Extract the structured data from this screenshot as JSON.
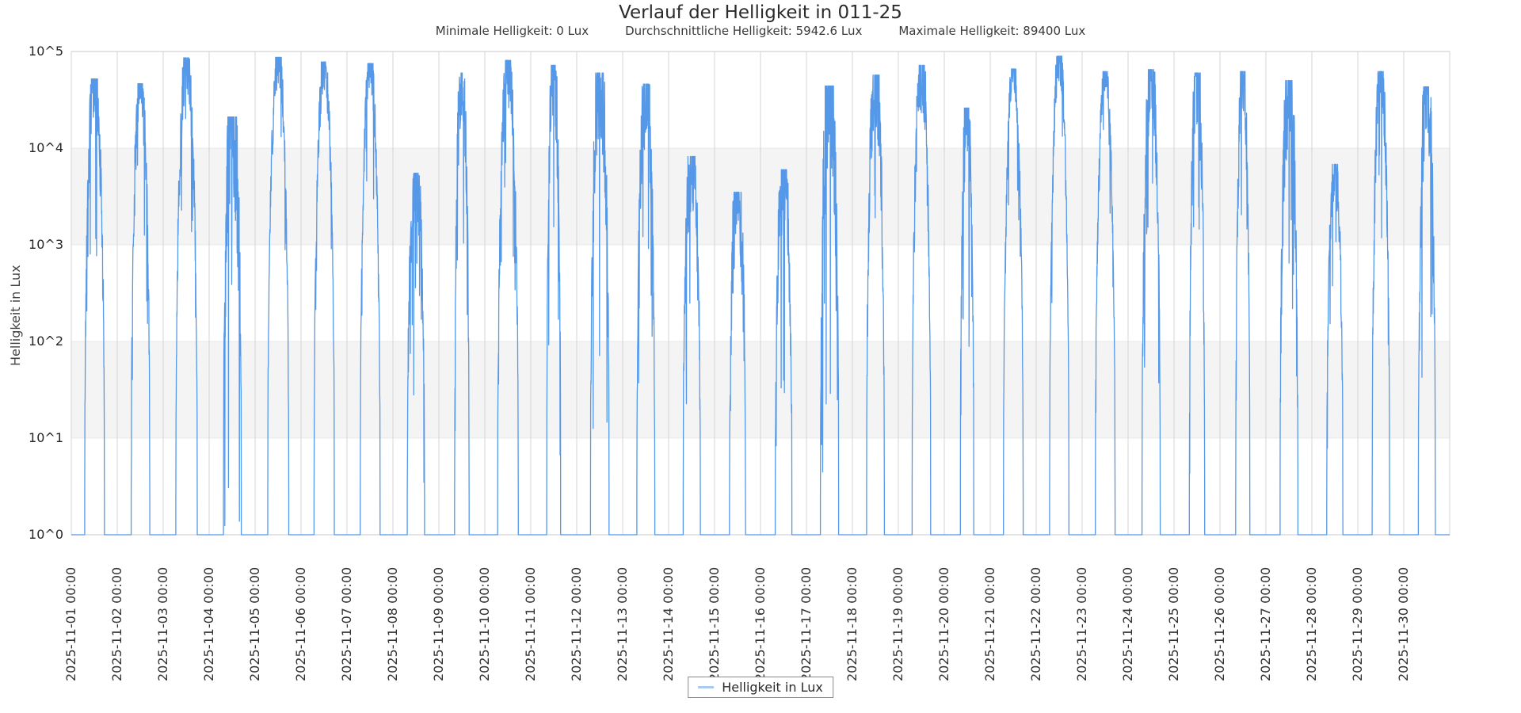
{
  "chart": {
    "title": "Verlauf der Helligkeit in 011-25",
    "stats": {
      "min_label": "Minimale Helligkeit: 0 Lux",
      "avg_label": "Durchschnittliche Helligkeit: 5942.6 Lux",
      "max_label": "Maximale Helligkeit: 89400 Lux"
    },
    "legend": {
      "label": "Helligkeit in Lux",
      "swatch_color": "#a9cbf0"
    }
  },
  "chart_data": {
    "type": "line",
    "title": "Verlauf der Helligkeit in 011-25",
    "xlabel": "",
    "ylabel": "Helligkeit in Lux",
    "series_name": "Helligkeit in Lux",
    "y_scale": "log",
    "ylim_log10": [
      0,
      5
    ],
    "y_ticks": [
      "10^5",
      "10^4",
      "10^3",
      "10^2",
      "10^1",
      "10^0"
    ],
    "grid": "daily vertical lines, alternating gray bands on decades 10^1-10^2 and 10^3-10^4",
    "legend_position": "bottom-center",
    "line_color": "#5598e8",
    "stats": {
      "min_lux": 0,
      "avg_lux": 5942.6,
      "max_lux": 89400
    },
    "x_range": [
      "2025-11-01 00:00",
      "2025-12-01 00:00"
    ],
    "days": [
      {
        "tick_label": "2025-11-01 00:00",
        "peak_lux": 52000,
        "sunrise_h": 7.0,
        "sunset_h": 17.3,
        "noise": 0.45
      },
      {
        "tick_label": "2025-11-02 00:00",
        "peak_lux": 46500,
        "sunrise_h": 7.3,
        "sunset_h": 17.0,
        "noise": 0.4
      },
      {
        "tick_label": "2025-11-03 00:00",
        "peak_lux": 86000,
        "sunrise_h": 6.6,
        "sunset_h": 17.8,
        "noise": 0.35
      },
      {
        "tick_label": "2025-11-04 00:00",
        "peak_lux": 21000,
        "sunrise_h": 7.5,
        "sunset_h": 16.8,
        "noise": 0.85
      },
      {
        "tick_label": "2025-11-05 00:00",
        "peak_lux": 87000,
        "sunrise_h": 6.6,
        "sunset_h": 17.6,
        "noise": 0.3
      },
      {
        "tick_label": "2025-11-06 00:00",
        "peak_lux": 78000,
        "sunrise_h": 6.8,
        "sunset_h": 17.4,
        "noise": 0.3
      },
      {
        "tick_label": "2025-11-07 00:00",
        "peak_lux": 75000,
        "sunrise_h": 6.9,
        "sunset_h": 17.3,
        "noise": 0.28
      },
      {
        "tick_label": "2025-11-08 00:00",
        "peak_lux": 5500,
        "sunrise_h": 7.5,
        "sunset_h": 16.5,
        "noise": 0.5
      },
      {
        "tick_label": "2025-11-09 00:00",
        "peak_lux": 60000,
        "sunrise_h": 8.2,
        "sunset_h": 15.8,
        "noise": 0.55
      },
      {
        "tick_label": "2025-11-10 00:00",
        "peak_lux": 81000,
        "sunrise_h": 6.7,
        "sunset_h": 17.5,
        "noise": 0.35
      },
      {
        "tick_label": "2025-11-11 00:00",
        "peak_lux": 72000,
        "sunrise_h": 8.3,
        "sunset_h": 15.6,
        "noise": 0.55
      },
      {
        "tick_label": "2025-11-12 00:00",
        "peak_lux": 60000,
        "sunrise_h": 7.2,
        "sunset_h": 16.9,
        "noise": 0.7
      },
      {
        "tick_label": "2025-11-13 00:00",
        "peak_lux": 46000,
        "sunrise_h": 7.4,
        "sunset_h": 16.8,
        "noise": 0.6
      },
      {
        "tick_label": "2025-11-14 00:00",
        "peak_lux": 8200,
        "sunrise_h": 7.6,
        "sunset_h": 16.6,
        "noise": 0.55
      },
      {
        "tick_label": "2025-11-15 00:00",
        "peak_lux": 3500,
        "sunrise_h": 7.8,
        "sunset_h": 16.2,
        "noise": 0.6
      },
      {
        "tick_label": "2025-11-16 00:00",
        "peak_lux": 6000,
        "sunrise_h": 7.7,
        "sunset_h": 16.4,
        "noise": 0.6
      },
      {
        "tick_label": "2025-11-17 00:00",
        "peak_lux": 44000,
        "sunrise_h": 7.3,
        "sunset_h": 16.8,
        "noise": 0.8
      },
      {
        "tick_label": "2025-11-18 00:00",
        "peak_lux": 57000,
        "sunrise_h": 7.4,
        "sunset_h": 16.7,
        "noise": 0.55
      },
      {
        "tick_label": "2025-11-19 00:00",
        "peak_lux": 72000,
        "sunrise_h": 7.2,
        "sunset_h": 16.9,
        "noise": 0.5
      },
      {
        "tick_label": "2025-11-20 00:00",
        "peak_lux": 26000,
        "sunrise_h": 8.4,
        "sunset_h": 15.4,
        "noise": 0.5
      },
      {
        "tick_label": "2025-11-21 00:00",
        "peak_lux": 66000,
        "sunrise_h": 6.9,
        "sunset_h": 17.2,
        "noise": 0.22
      },
      {
        "tick_label": "2025-11-22 00:00",
        "peak_lux": 89400,
        "sunrise_h": 7.0,
        "sunset_h": 17.1,
        "noise": 0.28
      },
      {
        "tick_label": "2025-11-23 00:00",
        "peak_lux": 62000,
        "sunrise_h": 6.9,
        "sunset_h": 17.2,
        "noise": 0.22
      },
      {
        "tick_label": "2025-11-24 00:00",
        "peak_lux": 65000,
        "sunrise_h": 7.3,
        "sunset_h": 16.8,
        "noise": 0.45
      },
      {
        "tick_label": "2025-11-25 00:00",
        "peak_lux": 60000,
        "sunrise_h": 8.0,
        "sunset_h": 16.0,
        "noise": 0.55
      },
      {
        "tick_label": "2025-11-26 00:00",
        "peak_lux": 62000,
        "sunrise_h": 8.2,
        "sunset_h": 15.6,
        "noise": 0.4
      },
      {
        "tick_label": "2025-11-27 00:00",
        "peak_lux": 50000,
        "sunrise_h": 7.4,
        "sunset_h": 16.7,
        "noise": 0.65
      },
      {
        "tick_label": "2025-11-28 00:00",
        "peak_lux": 6800,
        "sunrise_h": 7.8,
        "sunset_h": 16.2,
        "noise": 0.35
      },
      {
        "tick_label": "2025-11-29 00:00",
        "peak_lux": 62000,
        "sunrise_h": 7.5,
        "sunset_h": 16.6,
        "noise": 0.45
      },
      {
        "tick_label": "2025-11-30 00:00",
        "peak_lux": 43000,
        "sunrise_h": 7.6,
        "sunset_h": 16.5,
        "noise": 0.55
      }
    ],
    "colors": {
      "band_gray": "#f4f4f4",
      "grid_vertical": "#d4d4d4",
      "grid_horizontal": "#e8e8e8",
      "plot_border": "#c9c9c9"
    }
  }
}
